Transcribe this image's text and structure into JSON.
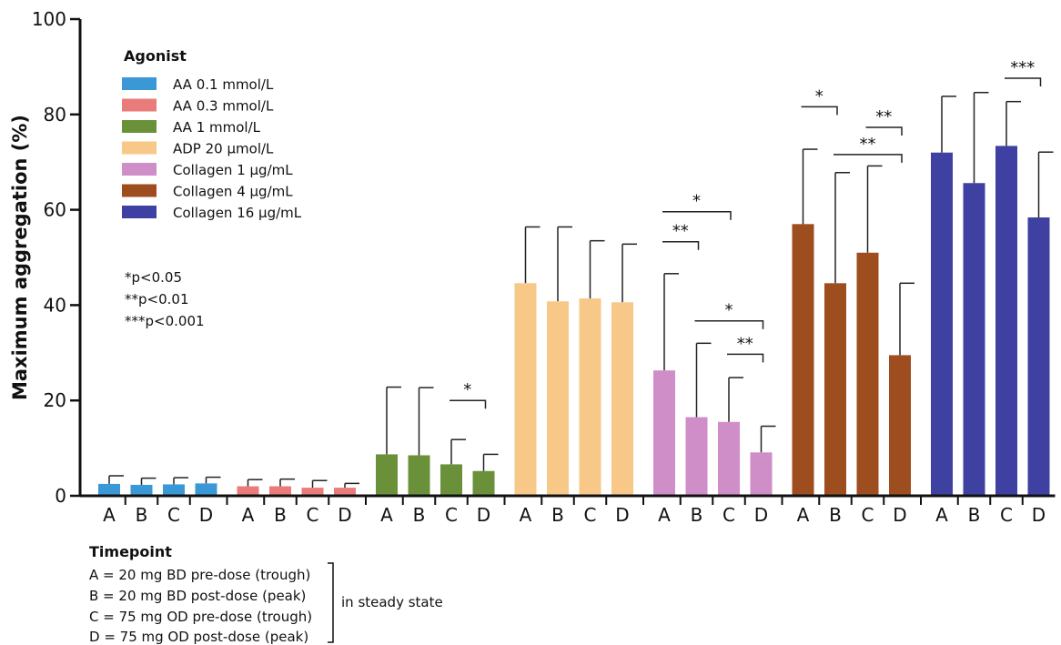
{
  "chart_data": {
    "type": "bar",
    "ylabel": "Maximum aggregation (%)",
    "ylim": [
      0,
      100
    ],
    "yticks": [
      0,
      20,
      40,
      60,
      80,
      100
    ],
    "timepoints": [
      "A",
      "B",
      "C",
      "D"
    ],
    "legend_title": "Agonist",
    "series": [
      {
        "name": "AA 0.1 mmol/L",
        "color": "#3a98d6",
        "values": [
          2.5,
          2.3,
          2.4,
          2.6
        ],
        "errors": [
          4.2,
          3.7,
          3.8,
          3.9
        ]
      },
      {
        "name": "AA 0.3 mmol/L",
        "color": "#ea7b7b",
        "values": [
          2.0,
          2.0,
          1.7,
          1.7
        ],
        "errors": [
          3.4,
          3.5,
          3.2,
          2.6
        ]
      },
      {
        "name": "AA 1 mmol/L",
        "color": "#6a913a",
        "values": [
          8.7,
          8.5,
          6.6,
          5.2
        ],
        "errors": [
          22.8,
          22.7,
          11.8,
          8.7
        ]
      },
      {
        "name": "ADP 20 µmol/L",
        "color": "#f7c887",
        "values": [
          44.6,
          40.8,
          41.4,
          40.6
        ],
        "errors": [
          56.4,
          56.4,
          53.5,
          52.8
        ]
      },
      {
        "name": "Collagen 1 µg/mL",
        "color": "#cf8ec8",
        "values": [
          26.3,
          16.5,
          15.5,
          9.1
        ],
        "errors": [
          46.6,
          32.0,
          24.8,
          14.6
        ]
      },
      {
        "name": "Collagen 4 µg/mL",
        "color": "#9e4d1f",
        "values": [
          57.0,
          44.6,
          51.0,
          29.5
        ],
        "errors": [
          72.7,
          67.8,
          69.2,
          44.6
        ]
      },
      {
        "name": "Collagen 16 µg/mL",
        "color": "#3e41a1",
        "values": [
          72.0,
          65.6,
          73.4,
          58.4
        ],
        "errors": [
          83.8,
          84.6,
          82.7,
          72.1
        ]
      }
    ],
    "significance": [
      {
        "group": 2,
        "from": "C",
        "to": "D",
        "level": 20,
        "label": "*"
      },
      {
        "group": 4,
        "from": "A",
        "to": "B",
        "level": 53.3,
        "label": "**"
      },
      {
        "group": 4,
        "from": "A",
        "to": "C",
        "level": 59.6,
        "label": "*"
      },
      {
        "group": 4,
        "from": "B",
        "to": "D",
        "level": 36.7,
        "label": "*"
      },
      {
        "group": 4,
        "from": "C",
        "to": "D",
        "level": 29.7,
        "label": "**"
      },
      {
        "group": 5,
        "from": "A",
        "to": "B",
        "level": 81.6,
        "label": "*"
      },
      {
        "group": 5,
        "from": "C",
        "to": "D",
        "level": 77.3,
        "label": "**"
      },
      {
        "group": 5,
        "from": "B",
        "to": "D",
        "level": 71.6,
        "label": "**"
      },
      {
        "group": 6,
        "from": "C",
        "to": "D",
        "level": 87.6,
        "label": "***"
      }
    ]
  },
  "pvalue_key": [
    "*p<0.05",
    "**p<0.01",
    "***p<0.001"
  ],
  "timepoint_legend": {
    "title": "Timepoint",
    "lines": [
      "A = 20 mg BD  pre-dose (trough)",
      "B = 20 mg BD  post-dose (peak)",
      "C = 75 mg OD pre-dose (trough)",
      "D = 75 mg OD post-dose (peak)"
    ],
    "bracket_label": "in steady state"
  }
}
